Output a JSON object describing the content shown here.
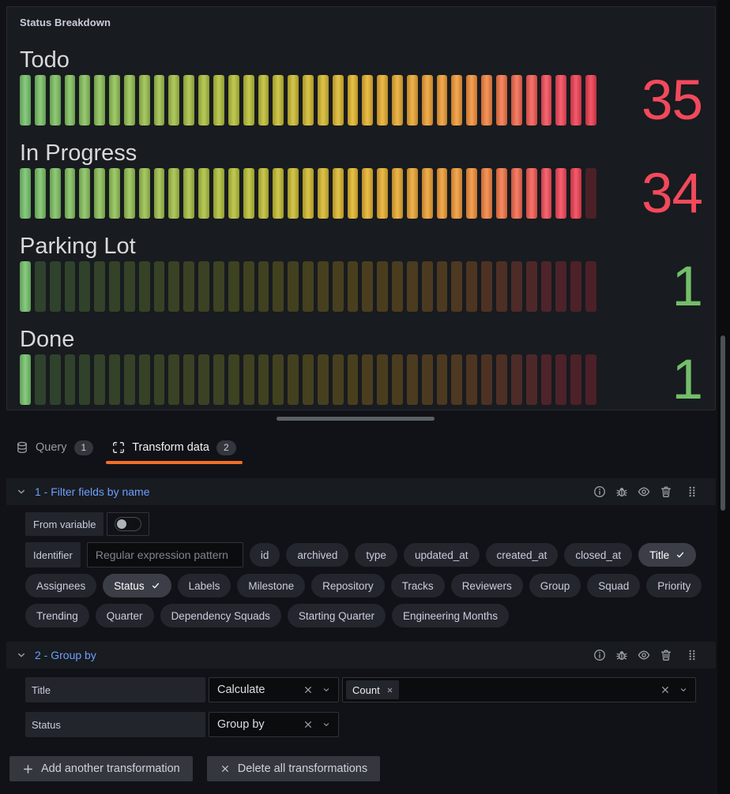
{
  "panel": {
    "title": "Status Breakdown"
  },
  "chart_data": {
    "type": "bar-gauge",
    "display_mode": "lcd-retro",
    "orientation": "horizontal",
    "categories": [
      "Todo",
      "In Progress",
      "Parking Lot",
      "Done"
    ],
    "values": [
      35,
      34,
      1,
      1
    ],
    "min": 0,
    "max": 35,
    "cell_count": 39,
    "value_colors": [
      "#F2495C",
      "#F2495C",
      "#73BF69",
      "#73BF69"
    ],
    "gradient_stops": [
      [
        0,
        "#73BF69"
      ],
      [
        0.38,
        "#B5BE35"
      ],
      [
        0.58,
        "#E0B42A"
      ],
      [
        0.78,
        "#F09437"
      ],
      [
        0.93,
        "#F2495C"
      ],
      [
        1,
        "#EB3B4D"
      ]
    ],
    "unlit_blend": 0.74,
    "panel_background": "#141619"
  },
  "tabs": [
    {
      "id": "query",
      "label": "Query",
      "badge": "1",
      "icon": "database-icon",
      "active": false
    },
    {
      "id": "transform-data",
      "label": "Transform data",
      "badge": "2",
      "icon": "transform-icon",
      "active": true
    }
  ],
  "header_icons": [
    "info-icon",
    "debug-icon",
    "eye-icon",
    "trash-icon",
    "drag-handle-icon"
  ],
  "transformations": [
    {
      "title": "1 - Filter fields by name",
      "from_variable_label": "From variable",
      "from_variable_on": false,
      "identifier_label": "Identifier",
      "identifier_placeholder": "Regular expression pattern",
      "identifier_value": "",
      "field_rows": [
        [
          {
            "label": "id",
            "selected": false
          },
          {
            "label": "archived",
            "selected": false
          },
          {
            "label": "type",
            "selected": false
          },
          {
            "label": "updated_at",
            "selected": false
          },
          {
            "label": "created_at",
            "selected": false
          },
          {
            "label": "closed_at",
            "selected": false
          },
          {
            "label": "Title",
            "selected": true
          }
        ],
        [
          {
            "label": "Assignees",
            "selected": false
          },
          {
            "label": "Status",
            "selected": true
          },
          {
            "label": "Labels",
            "selected": false
          },
          {
            "label": "Milestone",
            "selected": false
          },
          {
            "label": "Repository",
            "selected": false
          },
          {
            "label": "Tracks",
            "selected": false
          },
          {
            "label": "Reviewers",
            "selected": false
          },
          {
            "label": "Group",
            "selected": false
          },
          {
            "label": "Squad",
            "selected": false
          },
          {
            "label": "Priority",
            "selected": false
          }
        ],
        [
          {
            "label": "Trending",
            "selected": false
          },
          {
            "label": "Quarter",
            "selected": false
          },
          {
            "label": "Dependency Squads",
            "selected": false
          },
          {
            "label": "Starting Quarter",
            "selected": false
          },
          {
            "label": "Engineering Months",
            "selected": false
          }
        ]
      ]
    },
    {
      "title": "2 - Group by",
      "rows": [
        {
          "field": "Title",
          "operation": "Calculate",
          "aggregations": [
            "Count"
          ]
        },
        {
          "field": "Status",
          "operation": "Group by",
          "aggregations": []
        }
      ]
    }
  ],
  "actions": {
    "add_label": "Add another transformation",
    "delete_all_label": "Delete all transformations"
  },
  "colors": {
    "accent_orange": "#F26E28",
    "link_blue": "#6E9FFF",
    "value_red": "#F2495C",
    "value_green": "#73BF69"
  }
}
